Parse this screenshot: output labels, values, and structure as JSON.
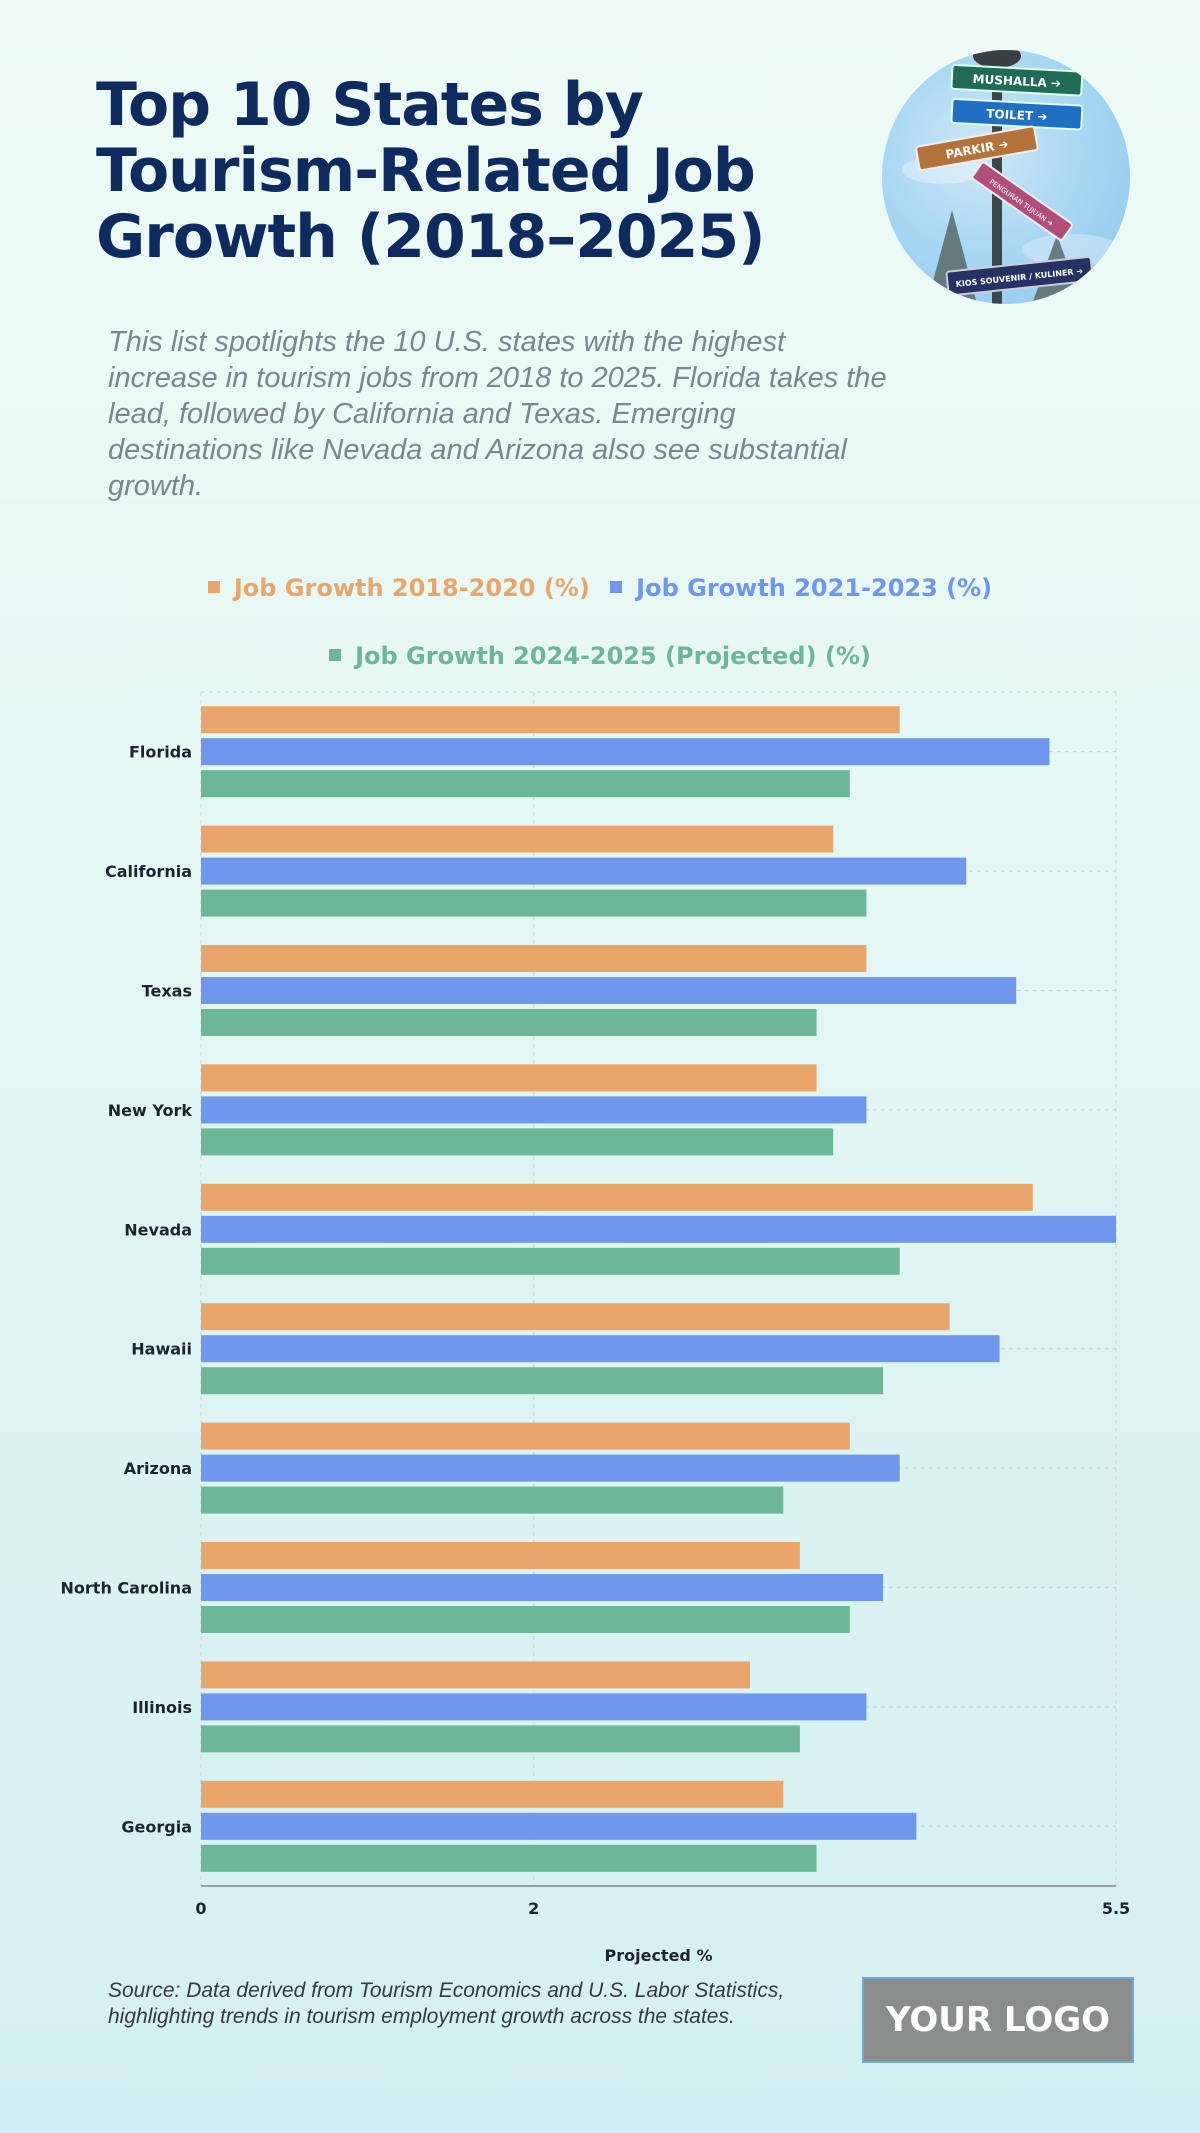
{
  "header": {
    "title": "Top 10 States by Tourism-Related Job Growth (2018–2025)",
    "subtitle": "This list spotlights the 10 U.S. states with the highest increase in tourism jobs from 2018 to 2025. Florida takes the lead, followed by California and Texas. Emerging destinations like Nevada and Arizona also see substantial growth.",
    "photo": {
      "description": "signpost-photo",
      "signs": [
        "MUSHALLA ➔",
        "TOILET ➔",
        "PARKIR ➔",
        "PENGURAN TUJUAN ➔",
        "KIOS SOUVENIR / KULINER ➔"
      ]
    }
  },
  "colors": {
    "series1": "#eaa66a",
    "series2": "#6f97ee",
    "series3": "#6db799",
    "title": "#0d2b5e"
  },
  "chart_data": {
    "type": "bar",
    "orientation": "horizontal",
    "title": "Top 10 States by Tourism-Related Job Growth (2018–2025)",
    "xlabel": "Projected %",
    "ylabel": "",
    "xlim": [
      0,
      5.5
    ],
    "xticks": [
      "0",
      "2",
      "5.5"
    ],
    "xtick_values": [
      0,
      2,
      5.5
    ],
    "grid": true,
    "legend_position": "top-center",
    "categories": [
      "Florida",
      "California",
      "Texas",
      "New York",
      "Nevada",
      "Hawaii",
      "Arizona",
      "North Carolina",
      "Illinois",
      "Georgia"
    ],
    "series": [
      {
        "name": "Job Growth 2018-2020 (%)",
        "color": "#eaa66a",
        "values": [
          4.2,
          3.8,
          4.0,
          3.7,
          5.0,
          4.5,
          3.9,
          3.6,
          3.3,
          3.5
        ]
      },
      {
        "name": "Job Growth 2021-2023 (%)",
        "color": "#6f97ee",
        "values": [
          5.1,
          4.6,
          4.9,
          4.0,
          5.5,
          4.8,
          4.2,
          4.1,
          4.0,
          4.3
        ]
      },
      {
        "name": "Job Growth 2024-2025 (Projected) (%)",
        "color": "#6db799",
        "values": [
          3.9,
          4.0,
          3.7,
          3.8,
          4.2,
          4.1,
          3.5,
          3.9,
          3.6,
          3.7
        ]
      }
    ]
  },
  "footer": {
    "source": "Source: Data derived from Tourism Economics and U.S. Labor Statistics, highlighting trends in tourism employment growth across the states.",
    "logo": "YOUR LOGO"
  }
}
